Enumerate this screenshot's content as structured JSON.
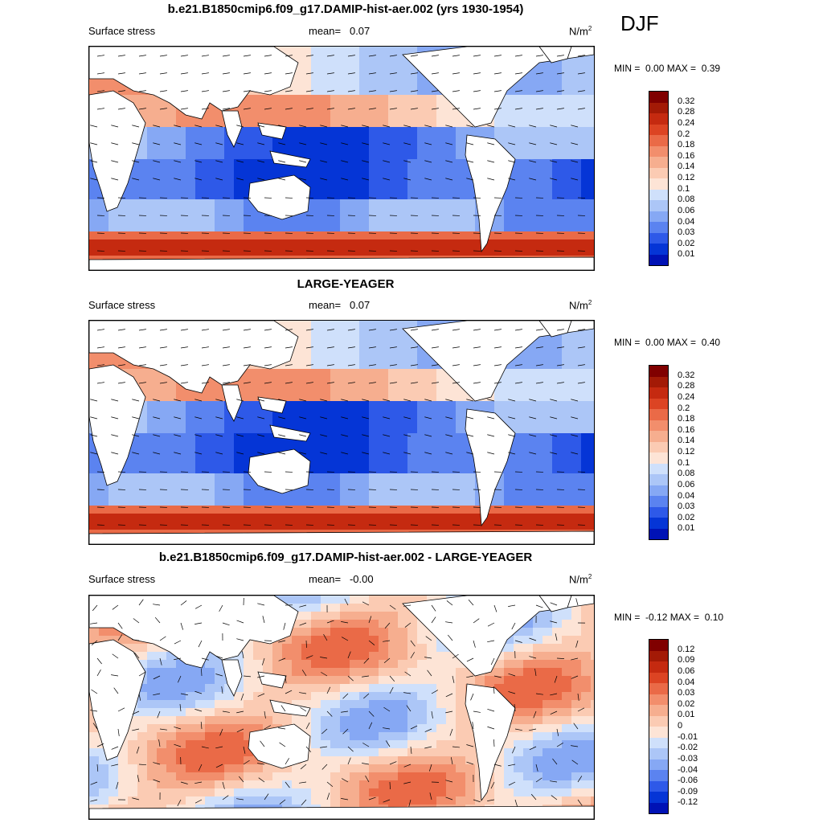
{
  "season": "DJF",
  "colors": {
    "seq": [
      "#00008f",
      "#0012b5",
      "#0535d6",
      "#2e59e8",
      "#5b83f0",
      "#86a8f4",
      "#acc6f7",
      "#cfe0fb",
      "#fde4d6",
      "#fbcbb3",
      "#f6ae8f",
      "#f28e6c",
      "#ea6a47",
      "#dc4423",
      "#c52a10",
      "#a31a06",
      "#800000"
    ],
    "land": "#ffffff"
  },
  "panels": [
    {
      "title": "b.e21.B1850cmip6.f09_g17.DAMIP-hist-aer.002 (yrs 1930-1954)",
      "left_label": "Surface stress",
      "mean_label": "mean=",
      "mean_value": "0.07",
      "units": "N/m",
      "units_sup": "2",
      "min_label": "MIN =",
      "min_value": "0.00",
      "max_label": "MAX =",
      "max_value": "0.39",
      "colorbar_labels": [
        "0.32",
        "0.28",
        "0.24",
        "0.2",
        "0.18",
        "0.16",
        "0.14",
        "0.12",
        "0.1",
        "0.08",
        "0.06",
        "0.04",
        "0.03",
        "0.02",
        "0.01"
      ],
      "field_type": "abs"
    },
    {
      "title": "LARGE-YEAGER",
      "left_label": "Surface stress",
      "mean_label": "mean=",
      "mean_value": "0.07",
      "units": "N/m",
      "units_sup": "2",
      "min_label": "MIN =",
      "min_value": "0.00",
      "max_label": "MAX =",
      "max_value": "0.40",
      "colorbar_labels": [
        "0.32",
        "0.28",
        "0.24",
        "0.2",
        "0.18",
        "0.16",
        "0.14",
        "0.12",
        "0.1",
        "0.08",
        "0.06",
        "0.04",
        "0.03",
        "0.02",
        "0.01"
      ],
      "field_type": "abs"
    },
    {
      "title": "b.e21.B1850cmip6.f09_g17.DAMIP-hist-aer.002 - LARGE-YEAGER",
      "left_label": "Surface stress",
      "mean_label": "mean=",
      "mean_value": "-0.00",
      "units": "N/m",
      "units_sup": "2",
      "min_label": "MIN =",
      "min_value": "-0.12",
      "max_label": "MAX =",
      "max_value": "0.10",
      "colorbar_labels": [
        "0.12",
        "0.09",
        "0.06",
        "0.04",
        "0.03",
        "0.02",
        "0.01",
        "0",
        "-0.01",
        "-0.02",
        "-0.03",
        "-0.04",
        "-0.06",
        "-0.09",
        "-0.12"
      ],
      "field_type": "diff"
    }
  ]
}
